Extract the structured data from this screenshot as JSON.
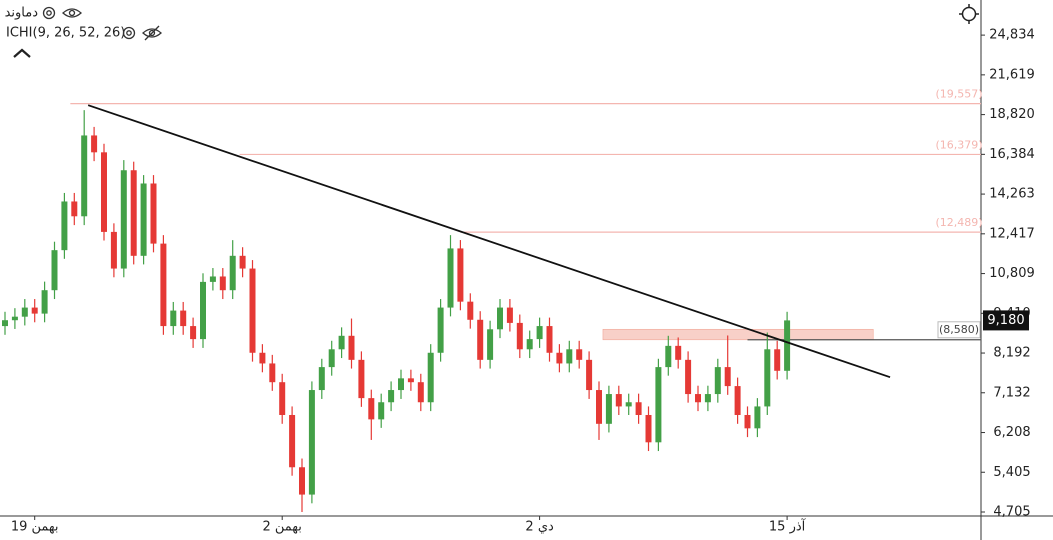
{
  "chart_data": {
    "type": "candlestick",
    "title": "دماوند",
    "indicator": "ICHI(9, 26, 52, 26)",
    "log_scale": true,
    "up_color": "#43a047",
    "down_color": "#e53935",
    "categories": [
      null,
      null,
      null,
      "19 بهمن",
      null,
      null,
      null,
      null,
      null,
      null,
      null,
      null,
      null,
      null,
      null,
      null,
      null,
      null,
      null,
      null,
      null,
      null,
      null,
      null,
      null,
      null,
      null,
      null,
      "2 بهمن",
      null,
      null,
      null,
      null,
      null,
      null,
      null,
      null,
      null,
      null,
      null,
      null,
      null,
      null,
      null,
      null,
      null,
      null,
      null,
      null,
      null,
      null,
      null,
      null,
      null,
      "2 دي",
      null,
      null,
      null,
      null,
      null,
      null,
      null,
      null,
      null,
      null,
      null,
      null,
      null,
      null,
      null,
      null,
      null,
      null,
      null,
      null,
      null,
      null,
      null,
      null,
      "15 آذر"
    ],
    "open": [
      9000,
      9186,
      9300,
      9600,
      9400,
      10200,
      11729,
      13900,
      13200,
      17500,
      16500,
      12500,
      11000,
      15500,
      11500,
      14800,
      12000,
      9000,
      9500,
      9000,
      8600,
      10500,
      10700,
      10200,
      11500,
      11000,
      8200,
      7900,
      7400,
      6600,
      5500,
      5000,
      7200,
      7800,
      8300,
      8700,
      8000,
      7000,
      6500,
      6900,
      7200,
      7500,
      7400,
      6900,
      8200,
      9600,
      11800,
      9800,
      9200,
      8000,
      8900,
      9600,
      9100,
      8300,
      8600,
      9000,
      8200,
      7900,
      8300,
      8000,
      7200,
      6400,
      7100,
      6800,
      6900,
      6600,
      6000,
      7800,
      8400,
      8000,
      7100,
      6900,
      7100,
      7800,
      7300,
      6600,
      6300,
      6800,
      8300,
      7700
    ],
    "high": [
      9460,
      9580,
      9890,
      9890,
      10510,
      12080,
      14320,
      14320,
      19115,
      18030,
      17000,
      12880,
      16058,
      15970,
      15240,
      15240,
      12360,
      9790,
      9790,
      9270,
      10820,
      11020,
      11020,
      12146,
      11850,
      11330,
      8450,
      8140,
      7620,
      6800,
      5670,
      7420,
      8030,
      8550,
      8960,
      9240,
      8240,
      7210,
      7110,
      7420,
      7730,
      7730,
      7620,
      8450,
      9890,
      12360,
      12150,
      10090,
      9480,
      9170,
      9890,
      9890,
      9370,
      8860,
      9270,
      9270,
      8450,
      8550,
      8550,
      8240,
      7420,
      7310,
      7310,
      7110,
      7110,
      6800,
      8030,
      8700,
      8650,
      8240,
      7310,
      7310,
      8030,
      8710,
      7520,
      6800,
      7000,
      8800,
      8550,
      9460
    ],
    "low": [
      8730,
      8910,
      9020,
      9120,
      9120,
      9890,
      11380,
      12800,
      12800,
      16000,
      12130,
      10670,
      10670,
      11160,
      11160,
      11640,
      8730,
      8730,
      8730,
      8340,
      8340,
      10190,
      9890,
      9890,
      10670,
      7950,
      7660,
      7180,
      6400,
      5340,
      4705,
      4850,
      6980,
      7570,
      8050,
      7760,
      6790,
      6050,
      6310,
      6690,
      6980,
      7180,
      6690,
      6690,
      7950,
      9310,
      9510,
      8920,
      7760,
      7760,
      8630,
      8830,
      8050,
      8050,
      8340,
      7950,
      7660,
      7660,
      7760,
      6980,
      6050,
      6210,
      6600,
      6600,
      6400,
      5820,
      5820,
      7570,
      7760,
      6890,
      6690,
      6690,
      6890,
      7080,
      6400,
      6110,
      6110,
      6600,
      7470,
      7470
    ],
    "close": [
      9186,
      9300,
      9600,
      9400,
      10200,
      11729,
      13900,
      13200,
      17500,
      16500,
      12500,
      11000,
      15500,
      11500,
      14800,
      12000,
      9000,
      9500,
      9000,
      8600,
      10500,
      10700,
      10200,
      11500,
      11000,
      8200,
      7900,
      7400,
      6600,
      5500,
      5000,
      7200,
      7800,
      8300,
      8700,
      8000,
      7000,
      6500,
      6900,
      7200,
      7500,
      7400,
      6900,
      8200,
      9600,
      11800,
      9800,
      9200,
      8000,
      8900,
      9600,
      9100,
      8300,
      8600,
      9000,
      8200,
      7900,
      8300,
      8000,
      7200,
      6400,
      7100,
      6800,
      6900,
      6600,
      6000,
      7800,
      8400,
      8000,
      7100,
      6900,
      7100,
      7800,
      7300,
      6600,
      6300,
      6800,
      8300,
      7700,
      9180
    ],
    "ylim": [
      4640,
      28070
    ],
    "yticks": [
      {
        "value": 4705,
        "label": "4,705"
      },
      {
        "value": 5405,
        "label": "5,405"
      },
      {
        "value": 6208,
        "label": "6,208"
      },
      {
        "value": 7132,
        "label": "7,132"
      },
      {
        "value": 8192,
        "label": "8,192"
      },
      {
        "value": 9410,
        "label": "9,410"
      },
      {
        "value": 10809,
        "label": "10,809"
      },
      {
        "value": 12417,
        "label": "12,417"
      },
      {
        "value": 14263,
        "label": "14,263"
      },
      {
        "value": 16384,
        "label": "16,384"
      },
      {
        "value": 18820,
        "label": "18,820"
      },
      {
        "value": 21619,
        "label": "21,619"
      },
      {
        "value": 24834,
        "label": "24,834"
      }
    ],
    "levels": [
      {
        "value": 19557,
        "label": "(19,557)",
        "start_index": 6.6,
        "color": "#f4b6b0"
      },
      {
        "value": 16379,
        "label": "(16,379)",
        "start_index": 23.7,
        "color": "#f4b6b0"
      },
      {
        "value": 12489,
        "label": "(12,489)",
        "start_index": 46,
        "color": "#f4b6b0"
      },
      {
        "value": 8580,
        "label": "(8,580)",
        "start_index": 75,
        "color": "#555555"
      }
    ],
    "zone": {
      "from_index": 60.4,
      "to_index": 87.7,
      "low": 8580,
      "high": 8900,
      "color": "#f8d0c8"
    },
    "trendline": {
      "from": {
        "index": 8.4,
        "value": 19450
      },
      "to": {
        "index": 89.4,
        "value": 7530
      },
      "color": "#111111"
    },
    "last_price": {
      "value": 9180,
      "label": "9,180"
    }
  }
}
